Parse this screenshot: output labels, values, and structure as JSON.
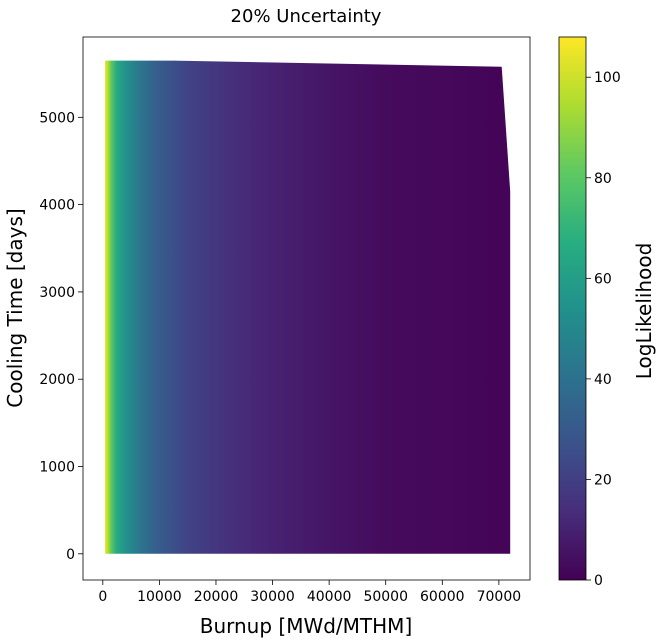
{
  "chart_data": {
    "type": "heatmap",
    "title": "20% Uncertainty",
    "xlabel": "Burnup [MWd/MTHM]",
    "ylabel": "Cooling Time [days]",
    "xlim": [
      -3500,
      75500
    ],
    "ylim": [
      -300,
      5920
    ],
    "xticks": [
      0,
      10000,
      20000,
      30000,
      40000,
      50000,
      60000,
      70000
    ],
    "yticks": [
      0,
      1000,
      2000,
      3000,
      4000,
      5000
    ],
    "colorbar": {
      "label": "LogLikelihood",
      "range": [
        0,
        108
      ],
      "ticks": [
        0,
        20,
        40,
        60,
        80,
        100
      ],
      "colormap": "viridis"
    },
    "data_region": {
      "outline_x": [
        400,
        12500,
        70500,
        72000,
        72000,
        400
      ],
      "outline_y": [
        5650,
        5650,
        5580,
        4150,
        0,
        0
      ],
      "burnup_range": [
        400,
        72000
      ],
      "cooling_time_range": [
        0,
        5650
      ]
    },
    "log_likelihood_profile": {
      "burnup": [
        400,
        900,
        1500,
        2500,
        4000,
        6000,
        8000,
        10000,
        12000,
        15000,
        20000,
        25000,
        30000,
        40000,
        50000,
        60000,
        72000
      ],
      "values": [
        104,
        96,
        80,
        65,
        55,
        45,
        37,
        31,
        27,
        22,
        17,
        13,
        10,
        6,
        3,
        2,
        1
      ]
    }
  }
}
